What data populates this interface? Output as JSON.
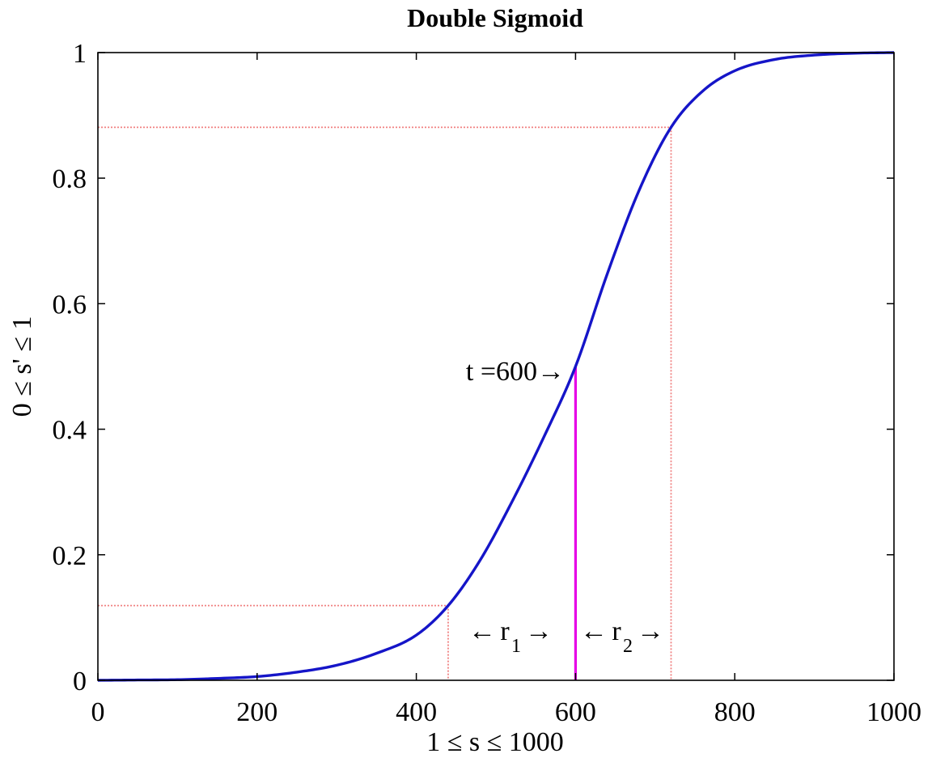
{
  "chart_data": {
    "type": "line",
    "title": "Double Sigmoid",
    "xlabel": "1 ≤ s ≤ 1000",
    "ylabel": "0 ≤ s' ≤ 1",
    "xlim": [
      0,
      1000
    ],
    "ylim": [
      0,
      1
    ],
    "x_ticks": [
      0,
      200,
      400,
      600,
      800,
      1000
    ],
    "x_tick_labels": [
      "0",
      "200",
      "400",
      "600",
      "800",
      "1000"
    ],
    "y_ticks": [
      0,
      0.2,
      0.4,
      0.6,
      0.8,
      1
    ],
    "y_tick_labels": [
      "0",
      "0.2",
      "0.4",
      "0.6",
      "0.8",
      "1"
    ],
    "grid": false,
    "legend": "none",
    "series": [
      {
        "color": "#1515c8",
        "x": [
          0,
          50,
          100,
          150,
          200,
          250,
          300,
          350,
          400,
          440,
          480,
          520,
          560,
          600,
          640,
          680,
          720,
          760,
          800,
          850,
          900,
          950,
          1000
        ],
        "y": [
          0.0,
          0.0005,
          0.001,
          0.003,
          0.006,
          0.013,
          0.024,
          0.043,
          0.072,
          0.119,
          0.191,
          0.284,
          0.387,
          0.5,
          0.648,
          0.781,
          0.881,
          0.939,
          0.971,
          0.989,
          0.996,
          0.999,
          1.0
        ]
      }
    ],
    "reference_lines": {
      "color": "#f08080",
      "lower_y": 0.119,
      "lower_x": 440,
      "upper_y": 0.881,
      "upper_x": 720
    },
    "threshold_line": {
      "color": "#e600e6",
      "x": 600,
      "y": 0.5
    },
    "annotations": {
      "t_label": "t =600",
      "r1_main": "r",
      "r1_sub": "1",
      "r2_main": "r",
      "r2_sub": "2",
      "arrow_left": "←",
      "arrow_right": "→"
    }
  }
}
